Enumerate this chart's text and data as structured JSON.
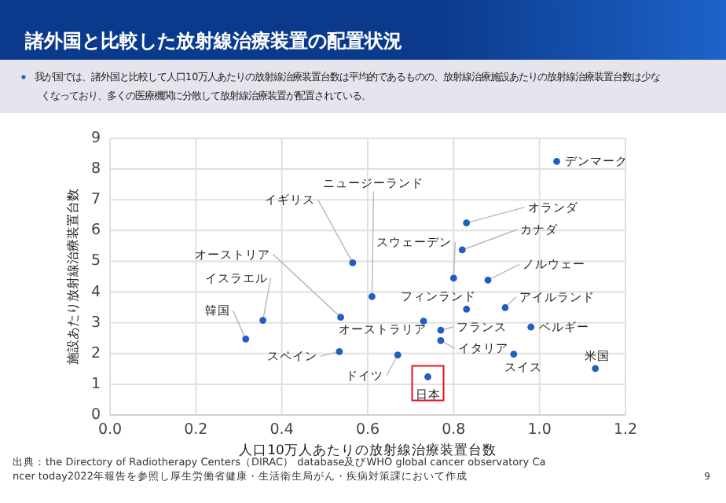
{
  "chart_data": {
    "type": "scatter",
    "title": "諸外国と比較した放射線治療装置の配置状況",
    "subtitle": "我が国では、諸外国と比較して人口10万人あたりの放射線治療装置台数は平均的であるものの、放射線治療施設あたりの放射線治療装置台数は少なくなっており、多くの医療機関に分散して放射線治療装置が配置されている。",
    "xlabel": "人口10万人あたりの放射線治療装置台数",
    "ylabel": "施設あたり放射線治療装置台数",
    "x": [
      1.04,
      0.83,
      0.82,
      0.8,
      0.88,
      0.83,
      0.92,
      0.61,
      0.565,
      0.537,
      0.356,
      0.316,
      0.534,
      0.67,
      0.73,
      0.77,
      0.77,
      0.98,
      0.94,
      1.13,
      0.74
    ],
    "series": [
      {
        "color": "#1f5fbf",
        "values": [
          8.25,
          6.25,
          5.37,
          4.45,
          4.39,
          3.44,
          3.49,
          3.85,
          4.95,
          3.18,
          3.08,
          2.47,
          2.06,
          1.95,
          3.05,
          2.76,
          2.42,
          2.86,
          1.98,
          1.51,
          1.24
        ]
      }
    ],
    "xlim": [
      0,
      1.2
    ],
    "xticks": [
      {
        "value": 0,
        "label": "0.0"
      },
      0.2,
      0.4,
      0.6,
      0.8,
      {
        "value": 1,
        "label": "1.0"
      },
      1.2
    ],
    "ylim": [
      0,
      9
    ],
    "yticks": [
      0,
      1,
      2,
      3,
      4,
      5,
      6,
      7,
      8,
      9
    ],
    "grid": true,
    "marker": "circle",
    "annotations": [
      {
        "text": "デンマーク",
        "x": 1.04,
        "y": 8.25
      },
      {
        "text": "オランダ",
        "x": 0.83,
        "y": 6.25
      },
      {
        "text": "カナダ",
        "x": 0.82,
        "y": 5.37
      },
      {
        "text": "スウェーデン",
        "x": 0.8,
        "y": 4.45
      },
      {
        "text": "ノルウェー",
        "x": 0.88,
        "y": 4.39
      },
      {
        "text": "フィンランド",
        "x": 0.83,
        "y": 3.44
      },
      {
        "text": "アイルランド",
        "x": 0.92,
        "y": 3.49
      },
      {
        "text": "ニュージーランド",
        "x": 0.61,
        "y": 3.85
      },
      {
        "text": "イギリス",
        "x": 0.565,
        "y": 4.95
      },
      {
        "text": "オーストリア",
        "x": 0.537,
        "y": 3.18
      },
      {
        "text": "イスラエル",
        "x": 0.356,
        "y": 3.08
      },
      {
        "text": "韓国",
        "x": 0.316,
        "y": 2.47
      },
      {
        "text": "スペイン",
        "x": 0.534,
        "y": 2.06
      },
      {
        "text": "ドイツ",
        "x": 0.67,
        "y": 1.95
      },
      {
        "text": "オーストラリア",
        "x": 0.73,
        "y": 3.05
      },
      {
        "text": "フランス",
        "x": 0.77,
        "y": 2.76
      },
      {
        "text": "イタリア",
        "x": 0.77,
        "y": 2.42
      },
      {
        "text": "ベルギー",
        "x": 0.98,
        "y": 2.86
      },
      {
        "text": "スイス",
        "x": 0.94,
        "y": 1.98
      },
      {
        "text": "米国",
        "x": 1.13,
        "y": 1.51
      },
      {
        "text": "日本",
        "x": 0.74,
        "y": 1.24
      },
      "出典：the Directory of Radiotherapy Centers（DIRAC） database及びWHO global cancer observatory Cancer today2022年報告を参照し厚生労働省健康・生活衛生局がん・疾病対策課において作成",
      "9"
    ]
  }
}
